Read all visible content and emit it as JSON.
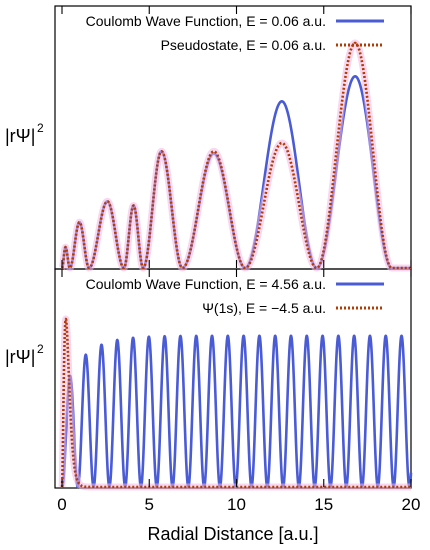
{
  "chart_data": [
    {
      "type": "line",
      "panel": "top",
      "ylabel": "|rΨ|",
      "ylabel_superscript": "2",
      "xlim": [
        0,
        20
      ],
      "ylim": [
        0,
        1.2
      ],
      "y_ticks": false,
      "grid": false,
      "legend_position": "top-right",
      "series": [
        {
          "name": "Coulomb Wave Function, E = 0.06 a.u.",
          "color": "#4a5bd6",
          "style": "solid",
          "nodes": [
            0,
            0.45,
            1.55,
            3.55,
            4.65,
            6.9,
            10.5,
            14.6,
            18.9,
            20
          ],
          "peaks_x": [
            0.2,
            1.0,
            2.6,
            4.1,
            5.7,
            8.7,
            12.6,
            16.8
          ],
          "peaks_y": [
            0.1,
            0.22,
            0.32,
            0.3,
            0.56,
            0.55,
            0.8,
            0.92
          ]
        },
        {
          "name": "Pseudostate, E = 0.06 a.u.",
          "color": "#b33a00",
          "style": "dotted",
          "nodes": [
            0,
            0.45,
            1.55,
            3.55,
            4.65,
            6.9,
            10.5,
            14.6,
            18.9,
            20
          ],
          "peaks_x": [
            0.2,
            1.0,
            2.6,
            4.1,
            5.7,
            8.7,
            12.6,
            16.8
          ],
          "peaks_y": [
            0.1,
            0.22,
            0.32,
            0.3,
            0.56,
            0.56,
            0.6,
            1.08
          ]
        }
      ]
    },
    {
      "type": "line",
      "panel": "bottom",
      "ylabel": "|rΨ|",
      "ylabel_superscript": "2",
      "xlabel": "Radial Distance [a.u.]",
      "xlim": [
        0,
        20
      ],
      "ylim": [
        0,
        1.0
      ],
      "x_ticks": [
        0,
        5,
        10,
        15,
        20
      ],
      "y_ticks": false,
      "grid": false,
      "legend_position": "top-right",
      "series": [
        {
          "name": "Coulomb Wave Function, E = 4.56 a.u.",
          "color": "#4a5bd6",
          "style": "solid",
          "oscillation_period": 0.905,
          "amplitude_near_origin": 0.44,
          "amplitude_far": 0.72
        },
        {
          "name": "Ψ(1s),  E = −4.5 a.u.",
          "color": "#b33a00",
          "style": "dotted",
          "peak_x": 0.22,
          "peak_y": 0.8
        }
      ]
    }
  ]
}
